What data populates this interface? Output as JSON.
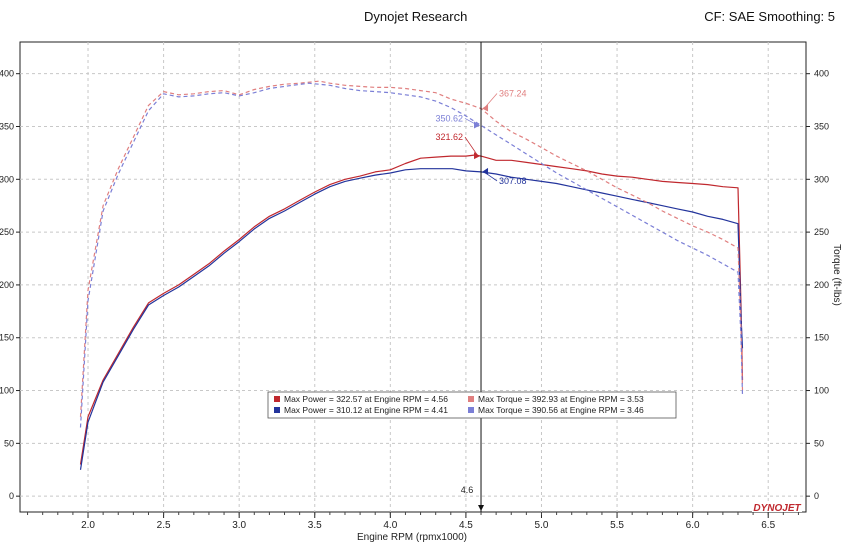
{
  "header": {
    "title": "Dynojet Research",
    "right": "CF: SAE Smoothing: 5"
  },
  "chart_data": {
    "type": "line",
    "xlabel": "Engine RPM (rpmx1000)",
    "ylabel_right": "Torque (ft-lbs)",
    "xlim": [
      1.55,
      6.75
    ],
    "ylim": [
      -15,
      430
    ],
    "xticks": [
      "2.0",
      "2.5",
      "3.0",
      "3.5",
      "4.0",
      "4.5",
      "5.0",
      "5.5",
      "6.0",
      "6.5"
    ],
    "yticks": [
      "0",
      "50",
      "100",
      "150",
      "200",
      "250",
      "300",
      "350",
      "400"
    ],
    "grid": true,
    "cursor": {
      "x": 4.6,
      "label": "4.6"
    },
    "cursor_labels": [
      {
        "text": "367.24",
        "color": "#e07f7f",
        "x": 4.6,
        "y": 367
      },
      {
        "text": "321.62",
        "color": "#c0282e",
        "x": 4.6,
        "y": 322
      },
      {
        "text": "350.62",
        "color": "#7b7fd6",
        "x": 4.6,
        "y": 351
      },
      {
        "text": "307.08",
        "color": "#23349c",
        "x": 4.6,
        "y": 307
      }
    ],
    "legend": {
      "placement": "lower-center",
      "entries": [
        {
          "color": "#c0282e",
          "text": "Max Power = 322.57 at Engine RPM = 4.56"
        },
        {
          "color": "#e07f7f",
          "text": "Max Torque = 392.93 at Engine RPM = 3.53"
        },
        {
          "color": "#23349c",
          "text": "Max Power = 310.12 at Engine RPM = 4.41"
        },
        {
          "color": "#7b7fd6",
          "text": "Max Torque = 390.56 at Engine RPM = 3.46"
        }
      ]
    },
    "series": [
      {
        "color": "#c0282e",
        "dash": false,
        "x": [
          1.95,
          2.0,
          2.1,
          2.2,
          2.3,
          2.4,
          2.5,
          2.6,
          2.7,
          2.8,
          2.9,
          3.0,
          3.1,
          3.2,
          3.3,
          3.4,
          3.5,
          3.6,
          3.7,
          3.8,
          3.9,
          4.0,
          4.1,
          4.2,
          4.3,
          4.4,
          4.5,
          4.56,
          4.6,
          4.7,
          4.8,
          4.9,
          5.0,
          5.1,
          5.2,
          5.3,
          5.4,
          5.5,
          5.6,
          5.7,
          5.8,
          5.9,
          6.0,
          6.1,
          6.2,
          6.3,
          6.32,
          6.33
        ],
        "y": [
          30,
          75,
          110,
          135,
          160,
          183,
          192,
          200,
          210,
          220,
          232,
          243,
          255,
          265,
          272,
          280,
          288,
          295,
          300,
          303,
          307,
          309,
          315,
          320,
          321,
          322,
          322,
          323,
          322,
          318,
          318,
          316,
          314,
          312,
          310,
          308,
          305,
          303,
          302,
          300,
          298,
          297,
          296,
          295,
          293,
          292,
          180,
          110
        ]
      },
      {
        "color": "#23349c",
        "dash": false,
        "x": [
          1.95,
          2.0,
          2.1,
          2.2,
          2.3,
          2.4,
          2.5,
          2.6,
          2.7,
          2.8,
          2.9,
          3.0,
          3.1,
          3.2,
          3.3,
          3.4,
          3.5,
          3.6,
          3.7,
          3.8,
          3.9,
          4.0,
          4.1,
          4.2,
          4.3,
          4.41,
          4.5,
          4.6,
          4.7,
          4.8,
          4.9,
          5.0,
          5.1,
          5.2,
          5.3,
          5.4,
          5.5,
          5.6,
          5.7,
          5.8,
          5.9,
          6.0,
          6.1,
          6.2,
          6.3,
          6.32,
          6.33
        ],
        "y": [
          25,
          70,
          108,
          133,
          158,
          181,
          190,
          198,
          208,
          218,
          230,
          241,
          253,
          263,
          270,
          278,
          286,
          293,
          298,
          301,
          304,
          306,
          309,
          310,
          310,
          310,
          308,
          307,
          305,
          302,
          300,
          298,
          296,
          293,
          290,
          287,
          284,
          281,
          278,
          275,
          272,
          269,
          265,
          262,
          258,
          170,
          140
        ]
      },
      {
        "color": "#e07f7f",
        "dash": true,
        "x": [
          1.95,
          2.0,
          2.1,
          2.2,
          2.3,
          2.4,
          2.5,
          2.6,
          2.7,
          2.8,
          2.9,
          3.0,
          3.1,
          3.2,
          3.3,
          3.4,
          3.53,
          3.6,
          3.7,
          3.8,
          3.9,
          4.0,
          4.1,
          4.2,
          4.3,
          4.4,
          4.5,
          4.6,
          4.7,
          4.8,
          4.9,
          5.0,
          5.1,
          5.2,
          5.3,
          5.4,
          5.5,
          5.6,
          5.7,
          5.8,
          5.9,
          6.0,
          6.1,
          6.2,
          6.3,
          6.32,
          6.33
        ],
        "y": [
          75,
          195,
          275,
          310,
          340,
          370,
          383,
          380,
          381,
          383,
          384,
          380,
          385,
          388,
          390,
          391,
          393,
          391,
          389,
          388,
          387,
          387,
          386,
          384,
          382,
          376,
          372,
          367,
          355,
          345,
          338,
          330,
          322,
          315,
          308,
          300,
          292,
          285,
          278,
          270,
          263,
          256,
          250,
          243,
          235,
          160,
          100
        ]
      },
      {
        "color": "#7b7fd6",
        "dash": true,
        "x": [
          1.95,
          2.0,
          2.1,
          2.2,
          2.3,
          2.4,
          2.5,
          2.6,
          2.7,
          2.8,
          2.9,
          3.0,
          3.1,
          3.2,
          3.3,
          3.46,
          3.6,
          3.7,
          3.8,
          3.9,
          4.0,
          4.1,
          4.2,
          4.3,
          4.4,
          4.5,
          4.6,
          4.7,
          4.8,
          4.9,
          5.0,
          5.1,
          5.2,
          5.3,
          5.4,
          5.5,
          5.6,
          5.7,
          5.8,
          5.9,
          6.0,
          6.1,
          6.2,
          6.3,
          6.32,
          6.33
        ],
        "y": [
          65,
          185,
          270,
          305,
          335,
          365,
          381,
          378,
          379,
          381,
          382,
          379,
          382,
          386,
          388,
          391,
          389,
          386,
          384,
          383,
          382,
          380,
          378,
          374,
          368,
          360,
          351,
          342,
          333,
          324,
          315,
          306,
          298,
          290,
          282,
          274,
          266,
          258,
          250,
          242,
          235,
          228,
          220,
          212,
          150,
          95
        ]
      }
    ]
  },
  "brand": {
    "logo_text": "DYNOJET"
  }
}
